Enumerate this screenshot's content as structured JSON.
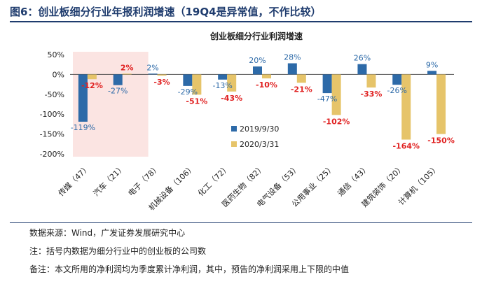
{
  "figure_title": "图6：创业板细分行业年报利润增速（19Q4是异常值，不作比较）",
  "footnotes": {
    "source": "数据来源：Wind，广发证券发展研究中心",
    "note": "注：括号内数据为细分行业中的创业板的公司数",
    "remark": "备注：本文所用的净利润均为季度累计净利润，其中，预告的净利润采用上下限的中值"
  },
  "colors": {
    "series_2019": "#2d6aa8",
    "series_2020": "#e6c46a",
    "label_2019": "#2d6aa8",
    "label_2020": "#e02020",
    "highlight": "#fbe4e2",
    "title": "#1f3c6e"
  },
  "chart_data": {
    "type": "bar",
    "title": "创业板细分行业利润增速",
    "categories": [
      "传媒（47）",
      "汽车（21）",
      "电子（78）",
      "机械设备（106）",
      "化工（72）",
      "医药生物（82）",
      "电气设备（53）",
      "公用事业（25）",
      "通信（43）",
      "建筑装饰（20）",
      "计算机（105）"
    ],
    "series": [
      {
        "name": "2019/9/30",
        "values": [
          -119,
          -27,
          2,
          -29,
          -13,
          20,
          28,
          -47,
          26,
          -26,
          9
        ],
        "labels": [
          "-119%",
          "-27%",
          "2%",
          "-29%",
          "-13%",
          "20%",
          "28%",
          "-47%",
          "26%",
          "-26%",
          "9%"
        ]
      },
      {
        "name": "2020/3/31",
        "values": [
          -12,
          2,
          -3,
          -51,
          -43,
          -10,
          -21,
          -102,
          -33,
          -164,
          -150
        ],
        "labels": [
          "-12%",
          "2%",
          "-3%",
          "-51%",
          "-43%",
          "-10%",
          "-21%",
          "-102%",
          "-33%",
          "-164%",
          "-150%"
        ]
      }
    ],
    "yticks": [
      "50%",
      "0%",
      "-50%",
      "-100%",
      "-150%",
      "-200%"
    ],
    "ytick_values": [
      50,
      0,
      -50,
      -100,
      -150,
      -200
    ],
    "ylim": [
      -200,
      50
    ],
    "legend_position": "right-middle",
    "highlighted_categories": [
      "传媒（47）",
      "汽车（21）"
    ]
  }
}
